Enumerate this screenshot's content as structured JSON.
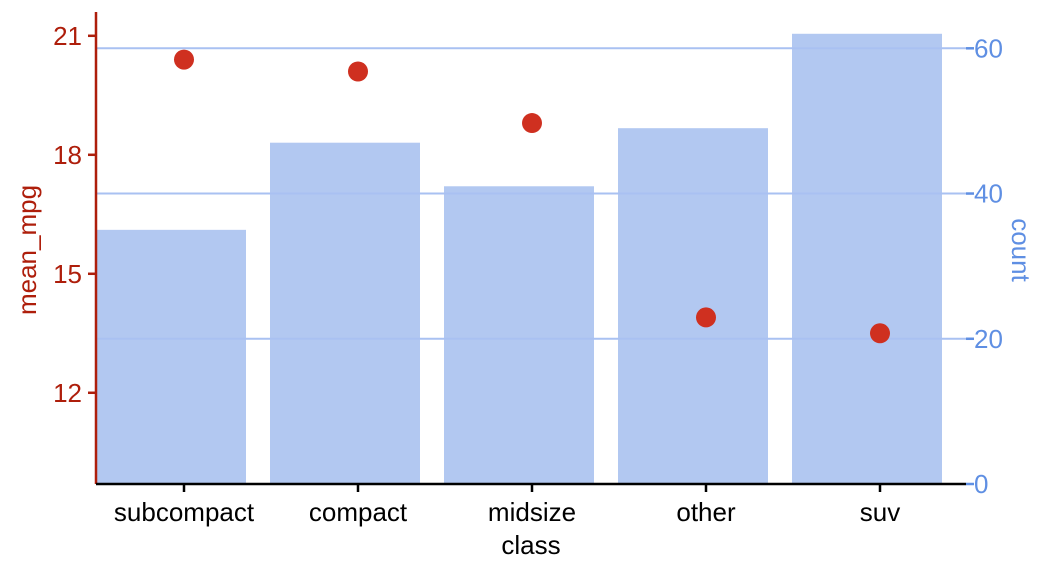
{
  "chart_data": {
    "type": "bar",
    "title": "",
    "xlabel": "class",
    "categories": [
      "subcompact",
      "compact",
      "midsize",
      "other",
      "suv"
    ],
    "series": [
      {
        "name": "count",
        "type": "bar",
        "axis": "right",
        "values": [
          35,
          47,
          41,
          49,
          62
        ]
      },
      {
        "name": "mean_mpg",
        "type": "point",
        "axis": "left",
        "values": [
          20.4,
          20.1,
          18.8,
          13.9,
          13.5
        ]
      }
    ],
    "y_left": {
      "label": "mean_mpg",
      "ticks": [
        12,
        15,
        18,
        21
      ],
      "range": [
        9.7,
        21.6
      ]
    },
    "y_right": {
      "label": "count",
      "ticks": [
        0,
        20,
        40,
        60
      ],
      "range": [
        0,
        65
      ]
    },
    "colors": {
      "bars": "#b2c8f1",
      "points": "#cf3020",
      "left_axis": "#ae1e0b",
      "right_axis": "#5f8fe3",
      "right_grid": "#a9c1f2",
      "x_axis": "#000000"
    },
    "grid": "horizontal lines at right-axis ticks",
    "legend": "none"
  }
}
